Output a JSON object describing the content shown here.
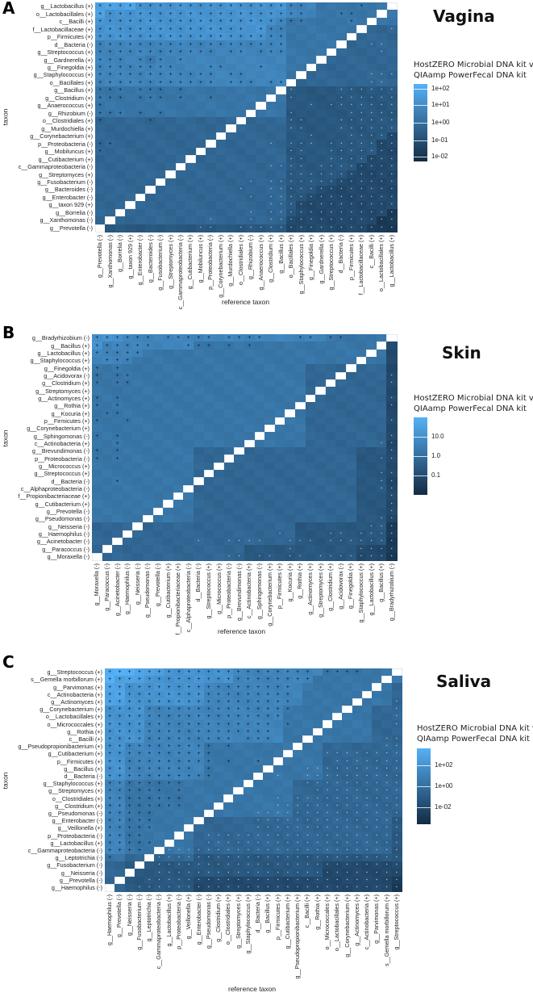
{
  "chart_data": [
    {
      "type": "heatmap",
      "panel_letter": "A",
      "title": "Vagina",
      "xlabel": "reference taxon",
      "ylabel": "taxon",
      "legend_title": [
        "HostZERO Microbial DNA kit vs",
        "QIAamp PowerFecal DNA kit"
      ],
      "legend_ticks": [
        "1e+02",
        "1e+01",
        "1e+00",
        "1e-01",
        "1e-02"
      ],
      "scale": "log10 ratio, levels 0-9 map 1e-02 to 1e+02",
      "rows": [
        "g__Lactobacillus (+)",
        "o__Lactobacillales (+)",
        "c__Bacilli (+)",
        "f__Lactobacillaceae (+)",
        "p__Firmicutes (+)",
        "d__Bacteria (-)",
        "g__Streptococcus (+)",
        "g__Gardnerella (+)",
        "g__Finegoldia (+)",
        "g__Staphylococcus (+)",
        "o__Bacillales (+)",
        "g__Bacillus (+)",
        "g__Clostridium (+)",
        "g__Anaerococcus (+)",
        "g__Rhizobium (-)",
        "o__Clostridiales (+)",
        "g__Murdochiella (+)",
        "g__Corynebacterium (+)",
        "p__Proteobacteria (-)",
        "g__Mobiluncus (+)",
        "g__Cutibacterium (+)",
        "c__Gammaproteobacteria (-)",
        "g__Streptomyces (+)",
        "g__Fusobacterium (-)",
        "g__Bacteroides (-)",
        "g__Enterobacter (-)",
        "g__taxon 929 (+)",
        "g__Borrelia (-)",
        "g__Xanthomonas (-)",
        "g__Prevotella (-)"
      ],
      "levels": [
        "888877777777777777766655555555",
        "877777777777777777766655555555",
        "777777777777777777655555555555",
        "777777777777777776655555554444",
        "777777777777777776655555544444",
        "666666666666666666655555444444",
        "666666666666666666655554444444",
        "666665666666666666655544444444",
        "666666666666666666655444444444",
        "666666666666666666654444444444",
        "666666666666666666644444444444",
        "555555555555555555533333333333",
        "555555555555555555533333333333",
        "555555555555555555533333333333",
        "555555555555555555533333333333",
        "444444444444444444433333333333",
        "444444444444444444433333333333",
        "444444444444444444433333333332",
        "444444444444444444433333333322",
        "444444444444444444433333333322",
        "444444444444444444433333333222",
        "444444444444444444433333332222",
        "444444444444444444433333322222",
        "444444444444444444433333222222",
        "444444444444444444433322222222",
        "444444444444444444433222222222",
        "444444444444444444432222222222",
        "444444444444444444432222222221",
        "444444444444444444422222222211",
        "333333333333333333322222222111"
      ],
      "marks": [
        "+++++++++++++++++++++.....+...",
        "+++++++++++++++++++++...++....",
        "+++++++++++++++++++++....+....",
        "+++++++++++++++.+++..........-",
        "+++++++++++++++++++...........",
        "+++++++++++++++++++........--.",
        "++++++++++++.++.+++.........-.",
        "+++.+++.+.....................",
        "++++++++...++...+.............",
        "++++++++++++.++............---",
        "++++++++++++.+++.++........--.",
        "+++.+++.+..........-....------",
        "+++.+++.+..+.......-....------",
        "+....................-.-------",
        "+++.+.+............-.....-----",
        "+....+.............--...------",
        "...................--...------",
        ".....................-...-----",
        "++...............-.---.-------",
        "+..................--..-------",
        "...................--..-------",
        ".................----.--------",
        "...................-----------",
        "...............-.-------------",
        "..............-..-------------",
        "...............-.-------------",
        ".................-------------",
        "...............-.-------------",
        "...........-...-.-------------",
        "..........--..----------------"
      ]
    },
    {
      "type": "heatmap",
      "panel_letter": "B",
      "title": "Skin",
      "xlabel": "reference taxon",
      "ylabel": "taxon",
      "legend_title": [
        "HostZERO Microbial DNA kit vs",
        "QIAamp PowerFecal DNA kit"
      ],
      "legend_ticks": [
        "10.0",
        "1.0",
        "0.1"
      ],
      "scale": "ratio, levels 0-9 (log scale)",
      "rows": [
        "g__Bradyrhizobium (-)",
        "g__Bacillus (+)",
        "g__Lactobacillus (+)",
        "g__Staphylococcus (+)",
        "g__Finegoldia (+)",
        "g__Acidovorax (-)",
        "g__Clostridium (+)",
        "g__Streptomyces (+)",
        "g__Actinomyces (+)",
        "g__Rothia (+)",
        "g__Kocuria (+)",
        "p__Firmicutes (+)",
        "g__Corynebacterium (+)",
        "g__Sphingomonas (-)",
        "c__Actinobacteria (+)",
        "g__Brevundimonas (-)",
        "p__Proteobacteria (-)",
        "g__Micrococcus (+)",
        "g__Streptococcus (+)",
        "d__Bacteria (-)",
        "c__Alphaproteobacteria (-)",
        "f__Propionibacteriaceae (+)",
        "g__Cutibacterium (+)",
        "g__Prevotella (-)",
        "g__Pseudomonas (-)",
        "g__Neisseria (-)",
        "g__Haemophilus (-)",
        "g__Acinetobacter (-)",
        "g__Paracoccus (-)",
        "g__Moraxella (-)"
      ],
      "levels": [
        "777666666666666666666665555555",
        "766666666655555555555555555552",
        "666665555555555555555555555552",
        "666655555555555555555555555552",
        "555555555555555555555444444442",
        "555555555555555555555444444442",
        "555555555555555555555444444442",
        "555555555555555555555444444442",
        "555555555555555555555444444442",
        "555555555555555555555444444442",
        "555555555555555555555444444442",
        "555555555555555555555444444442",
        "555555555555555555555444444442",
        "555555555555555555555444444442",
        "555555555555555555555444444442",
        "555555555544444444444444443332",
        "555555555544444444444444443332",
        "555555555544444444444444443332",
        "555555555544444444444444443332",
        "555555555544444444444444443332",
        "555555555544444444444444443332",
        "555555555544444444444444443332",
        "555555555544444444444444443332",
        "555555555544444444444444443332",
        "555555555544444444444444443332",
        "444444444444444444443333333331",
        "444444444444444444443333333331",
        "444444444444444444443333333331",
        "444444444444444333333333332221",
        "444444444444444333333333332221"
      ],
      "marks": [
        "++++++.+++++.++++...++.++.....",
        "++++++...+++.+.+..............",
        "+++++.........................",
        ".+++..........................",
        "+.+...........................",
        "+.++.........................-",
        "+.++.........................-",
        "..............................",
        "+.+..........................-",
        "+.+..........................-",
        ".++...........................",
        "+..+.........................-",
        "..............................",
        "+.+..........................-",
        "..+.........................--",
        "+.+..........................-",
        "+.+.........................--",
        "..............................",
        "............................--",
        "..+.........................--",
        "............................--",
        ".............................-",
        ".............................-",
        ".............................-",
        "............................--",
        "...........................---",
        "..................-....--.----",
        "..........-..----..---.-------",
        "...................-......----",
        ".............--.--.--.--------"
      ]
    },
    {
      "type": "heatmap",
      "panel_letter": "C",
      "title": "Saliva",
      "xlabel": "reference taxon",
      "ylabel": "taxon",
      "legend_title": [
        "HostZERO Microbial DNA kit vs",
        "QIAamp PowerFecal DNA kit"
      ],
      "legend_ticks": [
        "1e+02",
        "1e+00",
        "1e-02"
      ],
      "scale": "log10 ratio, levels 0-9",
      "rows": [
        "g__Streptococcus (+)",
        "s__Gemella morbillorum (+)",
        "g__Parvimonas (+)",
        "c__Actinobacteria (+)",
        "g__Actinomyces (+)",
        "g__Corynebacterium (+)",
        "o__Lactobacillales (+)",
        "o__Micrococcales (+)",
        "g__Rothia (+)",
        "c__Bacilli (+)",
        "g__Pseudopropionibacterium (+)",
        "g__Cutibacterium (+)",
        "p__Firmicutes (+)",
        "g__Bacillus (+)",
        "d__Bacteria (-)",
        "g__Staphylococcus (+)",
        "g__Streptomyces (+)",
        "o__Clostridiales (+)",
        "g__Clostridium (+)",
        "g__Pseudomonas (-)",
        "g__Enterobacter (-)",
        "g__Veillonella (+)",
        "p__Proteobacteria (-)",
        "g__Lactobacillus (+)",
        "c__Gammaproteobacteria (-)",
        "g__Leptotrichia (-)",
        "g__Fusobacterium (-)",
        "g__Neisseria (-)",
        "g__Prevotella (-)",
        "g__Haemophilus (-)"
      ],
      "levels": [
        "999888777777766666666655555555",
        "988877777777766666666555555555",
        "887777777766666666665555555554",
        "887777777766666666665555555554",
        "887777777766666666665555555554",
        "777766666666666666555555555444",
        "777766666666666666555555555444",
        "777766666666666666555555555444",
        "777766666666666666555555555444",
        "777766666666666666555555555444",
        "776666666655555555555544444444",
        "776666666655555555555544444444",
        "776666666655555555555544444444",
        "776666666655555555555544444444",
        "776666666655555555555544444444",
        "665555555555555555544444444444",
        "665555555555555555544444444444",
        "665555555555555555544444444444",
        "665555555555555555544444444444",
        "665555555555555555544444444444",
        "665555555444444444444444444443",
        "665555555444444444444444444443",
        "665555555444444444444444444443",
        "665555555444444444444444444443",
        "665555555444444444444444444443",
        "554444444333333333333333333333",
        "443333333333333333333322222222",
        "443333333333333333333322222222",
        "443333333222222222222222222221",
        "443333333222222222222222222221"
      ],
      "marks": [
        "+++++++++++++++++++++.++++....",
        "+++++++++++++++++++++.........",
        "+++++++++++++++++++...........",
        "+++++++++++++++++++...........",
        "+++++++++++++++++++..........-",
        "+++++++++++++++++++..........-",
        "++++++++++++++++++...........-",
        "+++++++++++++++++.+..........-",
        "+++++++++++++++++.............",
        "+++++++++++++.+++...........--",
        "+++++++++++.+...............--",
        "+++++++++++...........--------",
        "+++++++++++.+..+.......-------",
        "+++++++++.+.........----------",
        "+++++++++++......-..----------",
        "++++++++............----------",
        "++++++.+.............---------",
        "++++++++.........-.-----------",
        "++++++++.........-------------",
        "+++++..........---------------",
        "+++++..........---------------",
        "+++++..........---------------",
        "++++......--------------------",
        "+++++.....--------------------",
        "++++.-------------------------",
        "+....-------------------------",
        ".....-------------------------",
        ".....-------------------------",
        "....--------------------------",
        "...---------------------------"
      ]
    }
  ],
  "colors": {
    "low": "#132B43",
    "high": "#56B1F7",
    "diagonal": "#ffffff"
  }
}
